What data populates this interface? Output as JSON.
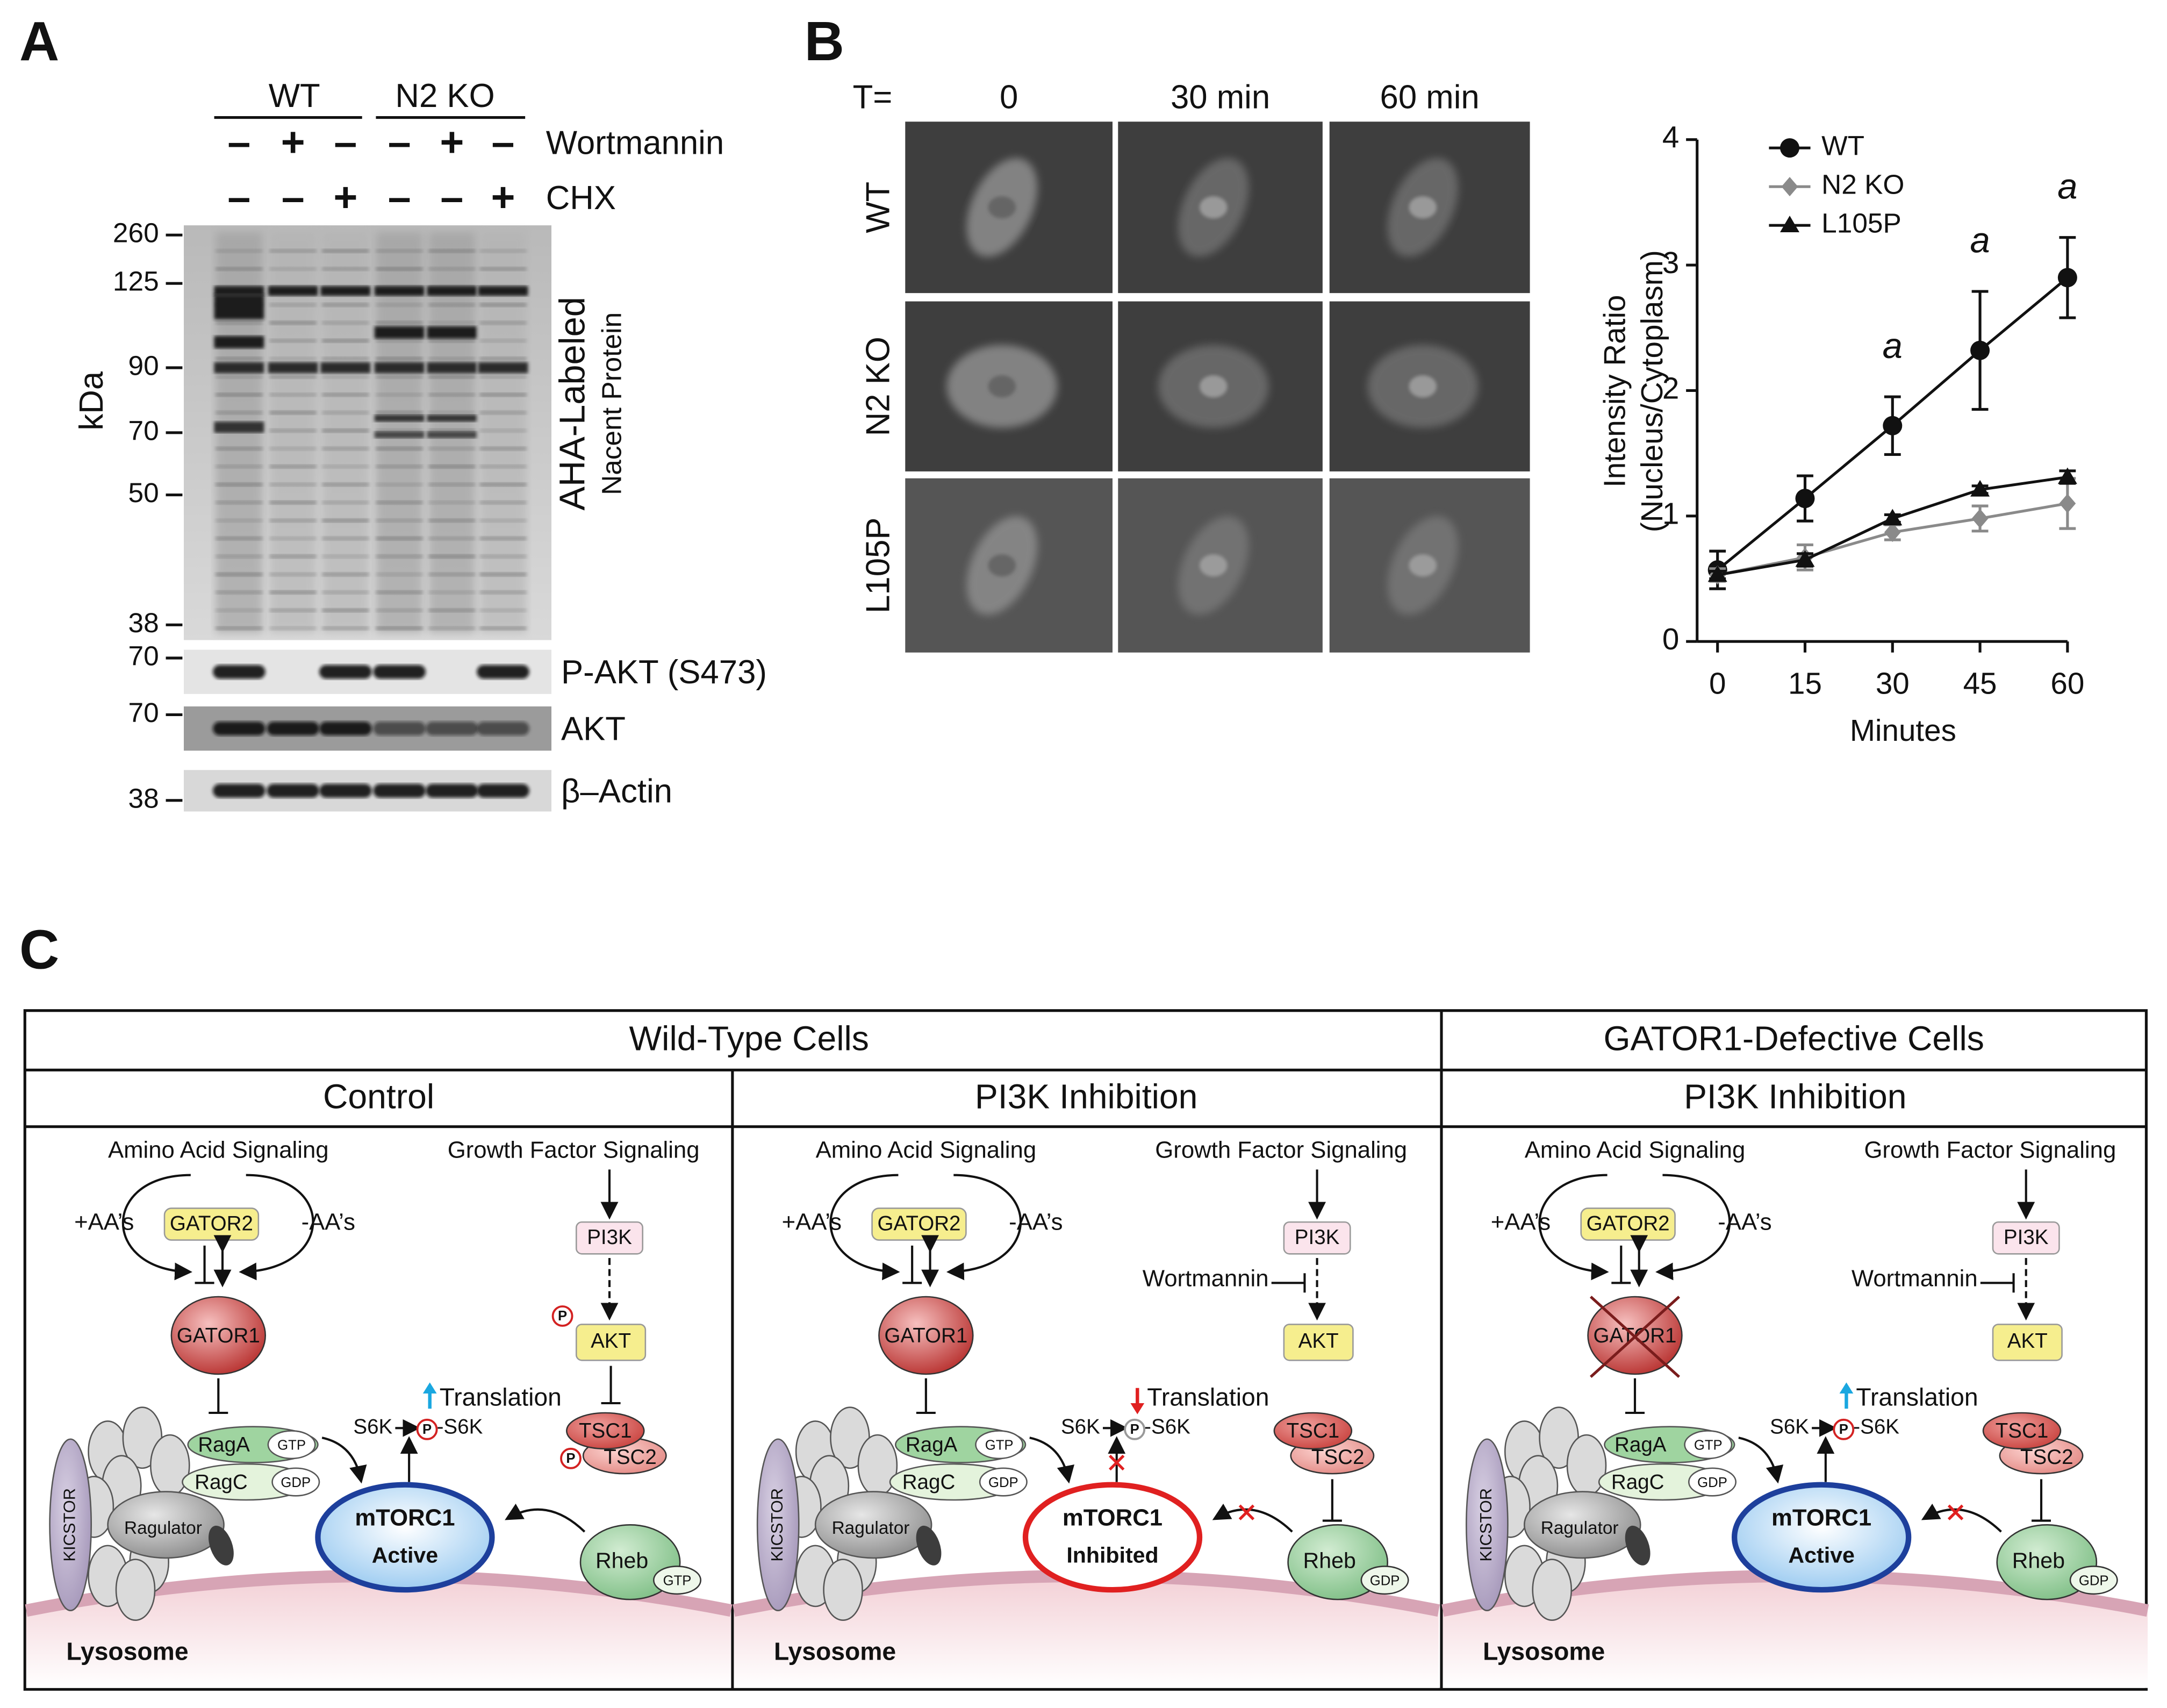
{
  "panel_a": {
    "label": "A",
    "groups": [
      "WT",
      "N2 KO"
    ],
    "treatments": [
      {
        "name": "Wortmannin",
        "signs": [
          "–",
          "+",
          "–",
          "–",
          "+",
          "–"
        ]
      },
      {
        "name": "CHX",
        "signs": [
          "–",
          "–",
          "+",
          "–",
          "–",
          "+"
        ]
      }
    ],
    "unit": "kDa",
    "main_blot": {
      "label": "AHA-Labeled",
      "sublabel": "Nacent Protein",
      "markers": [
        260,
        125,
        90,
        70,
        50,
        38
      ]
    },
    "pakt_blot": {
      "label": "P-AKT (S473)",
      "marker": 70
    },
    "akt_blot": {
      "label": "AKT",
      "marker": 70
    },
    "actin_blot": {
      "label": "β–Actin",
      "marker": 38
    }
  },
  "panel_b": {
    "label": "B",
    "time_prefix": "T=",
    "times": [
      "0",
      "30 min",
      "60 min"
    ],
    "rows": [
      "WT",
      "N2 KO",
      "L105P"
    ]
  },
  "chart_data": {
    "type": "line",
    "x": [
      0,
      15,
      30,
      45,
      60
    ],
    "series": [
      {
        "name": "WT",
        "color": "#111111",
        "marker": "circle",
        "values": [
          0.57,
          1.14,
          1.72,
          2.32,
          2.9
        ],
        "error": [
          0.15,
          0.18,
          0.23,
          0.47,
          0.32
        ]
      },
      {
        "name": "N2 KO",
        "color": "#8a8a8a",
        "marker": "diamond",
        "values": [
          0.53,
          0.67,
          0.87,
          0.98,
          1.1
        ],
        "error": [
          0.05,
          0.1,
          0.06,
          0.1,
          0.2
        ]
      },
      {
        "name": "L105P",
        "color": "#111111",
        "marker": "triangle",
        "values": [
          0.53,
          0.65,
          0.98,
          1.21,
          1.31
        ],
        "error": [
          0.03,
          0.05,
          0.03,
          0.03,
          0.05
        ]
      }
    ],
    "xlim": [
      -3.5,
      60
    ],
    "xticks": [
      0,
      15,
      30,
      45,
      60
    ],
    "ylim": [
      0,
      4
    ],
    "yticks": [
      0,
      1,
      2,
      3,
      4
    ],
    "x_label": "Minutes",
    "y_label": [
      "Intensity Ratio",
      "(Nucleus/Cytoplasm)"
    ],
    "annotations": [
      {
        "x": 30,
        "text": "a"
      },
      {
        "x": 45,
        "text": "a"
      },
      {
        "x": 60,
        "text": "a"
      }
    ],
    "legend": "top-left"
  },
  "panel_c": {
    "label": "C",
    "groups": [
      "Wild-Type Cells",
      "GATOR1-Defective Cells"
    ],
    "columns": [
      {
        "title": "Control",
        "amino": "Amino Acid Signaling",
        "growth": "Growth Factor Signaling",
        "plus_aa": "+AA’s",
        "minus_aa": "-AA’s",
        "gator2": "GATOR2",
        "gator1": "GATOR1",
        "pi3k": "PI3K",
        "akt_p": "P",
        "akt": "AKT",
        "translation": "Translation",
        "s6k": "S6K",
        "ps6k_p": "P",
        "ps6k": "-S6K",
        "tsc1": "TSC1",
        "tsc2_p": "P",
        "tsc2": "TSC2",
        "raga": "RagA",
        "raga_gtp": "GTP",
        "ragc": "RagC",
        "ragc_gdp": "GDP",
        "ragulator": "Ragulator",
        "kicstor": "KICSTOR",
        "mtorc1": "mTORC1",
        "mtorc1_state": "Active",
        "rheb": "Rheb",
        "rheb_nucleotide": "GTP",
        "lysosome": "Lysosome"
      },
      {
        "title": "PI3K Inhibition",
        "amino": "Amino Acid Signaling",
        "growth": "Growth Factor Signaling",
        "plus_aa": "+AA’s",
        "minus_aa": "-AA’s",
        "gator2": "GATOR2",
        "gator1": "GATOR1",
        "pi3k": "PI3K",
        "wortmannin": "Wortmannin",
        "akt": "AKT",
        "translation": "Translation",
        "s6k": "S6K",
        "ps6k_p": "P",
        "ps6k": "-S6K",
        "tsc1": "TSC1",
        "tsc2": "TSC2",
        "raga": "RagA",
        "raga_gtp": "GTP",
        "ragc": "RagC",
        "ragc_gdp": "GDP",
        "ragulator": "Ragulator",
        "kicstor": "KICSTOR",
        "mtorc1": "mTORC1",
        "mtorc1_state": "Inhibited",
        "rheb": "Rheb",
        "rheb_nucleotide": "GDP",
        "lysosome": "Lysosome"
      },
      {
        "title": "PI3K Inhibition",
        "amino": "Amino Acid Signaling",
        "growth": "Growth Factor Signaling",
        "plus_aa": "+AA’s",
        "minus_aa": "-AA’s",
        "gator2": "GATOR2",
        "gator1": "GATOR1",
        "pi3k": "PI3K",
        "wortmannin": "Wortmannin",
        "akt": "AKT",
        "translation": "Translation",
        "s6k": "S6K",
        "ps6k_p": "P",
        "ps6k": "-S6K",
        "tsc1": "TSC1",
        "tsc2": "TSC2",
        "raga": "RagA",
        "raga_gtp": "GTP",
        "ragc": "RagC",
        "ragc_gdp": "GDP",
        "ragulator": "Ragulator",
        "kicstor": "KICSTOR",
        "mtorc1": "mTORC1",
        "mtorc1_state": "Active",
        "rheb": "Rheb",
        "rheb_nucleotide": "GDP",
        "lysosome": "Lysosome"
      }
    ]
  }
}
